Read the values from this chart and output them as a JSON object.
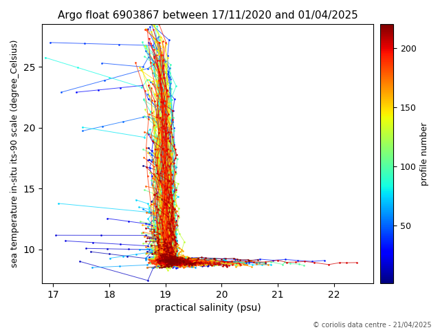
{
  "title": "Argo float 6903867 between 17/11/2020 and 01/04/2025",
  "xlabel": "practical salinity (psu)",
  "ylabel": "sea temperature in-situ its-90 scale (degree_Celsius)",
  "colorbar_label": "profile number",
  "copyright": "© coriolis data centre - 21/04/2025",
  "xlim": [
    16.8,
    22.7
  ],
  "ylim": [
    7.2,
    28.5
  ],
  "xticks": [
    17,
    18,
    19,
    20,
    21,
    22
  ],
  "yticks": [
    10,
    15,
    20,
    25
  ],
  "cbar_ticks": [
    50,
    100,
    150,
    200
  ],
  "num_profiles": 220,
  "colormap": "jet",
  "figsize": [
    6.4,
    4.8
  ],
  "dpi": 100
}
